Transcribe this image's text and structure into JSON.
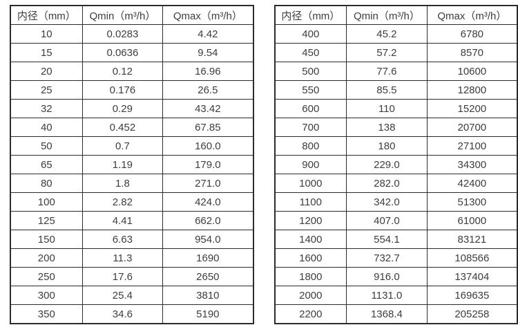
{
  "tables": [
    {
      "name": "flow-rate-table-small-diameters",
      "headers": [
        "内径（mm）",
        "Qmin（m³/h）",
        "Qmax（m³/h）"
      ],
      "rows": [
        [
          "10",
          "0.0283",
          "4.42"
        ],
        [
          "15",
          "0.0636",
          "9.54"
        ],
        [
          "20",
          "0.12",
          "16.96"
        ],
        [
          "25",
          "0.176",
          "26.5"
        ],
        [
          "32",
          "0.29",
          "43.42"
        ],
        [
          "40",
          "0.452",
          "67.85"
        ],
        [
          "50",
          "0.7",
          "160.0"
        ],
        [
          "65",
          "1.19",
          "179.0"
        ],
        [
          "80",
          "1.8",
          "271.0"
        ],
        [
          "100",
          "2.82",
          "424.0"
        ],
        [
          "125",
          "4.41",
          "662.0"
        ],
        [
          "150",
          "6.63",
          "954.0"
        ],
        [
          "200",
          "11.3",
          "1690"
        ],
        [
          "250",
          "17.6",
          "2650"
        ],
        [
          "300",
          "25.4",
          "3810"
        ],
        [
          "350",
          "34.6",
          "5190"
        ]
      ]
    },
    {
      "name": "flow-rate-table-large-diameters",
      "headers": [
        "内径（mm）",
        "Qmin（m³/h）",
        "Qmax（m³/h）"
      ],
      "rows": [
        [
          "400",
          "45.2",
          "6780"
        ],
        [
          "450",
          "57.2",
          "8570"
        ],
        [
          "500",
          "77.6",
          "10600"
        ],
        [
          "550",
          "85.5",
          "12800"
        ],
        [
          "600",
          "110",
          "15200"
        ],
        [
          "700",
          "138",
          "20700"
        ],
        [
          "800",
          "180",
          "27100"
        ],
        [
          "900",
          "229.0",
          "34300"
        ],
        [
          "1000",
          "282.0",
          "42400"
        ],
        [
          "1100",
          "342.0",
          "51300"
        ],
        [
          "1200",
          "407.0",
          "61000"
        ],
        [
          "1400",
          "554.1",
          "83121"
        ],
        [
          "1600",
          "732.7",
          "108566"
        ],
        [
          "1800",
          "916.0",
          "137404"
        ],
        [
          "2000",
          "1131.0",
          "169635"
        ],
        [
          "2200",
          "1368.4",
          "205258"
        ]
      ]
    },
    "colors_note_removed"
  ],
  "colors": {
    "border": "#2b2b2b",
    "text": "#3d3d3d",
    "background": "#ffffff"
  }
}
